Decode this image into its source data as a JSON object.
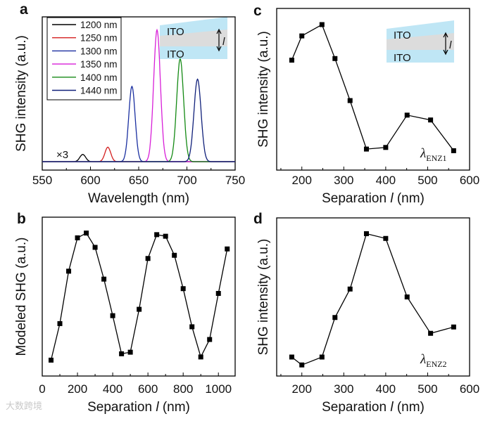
{
  "chart_data": [
    {
      "panel": "a",
      "type": "line",
      "xlabel": "Wavelength (nm)",
      "ylabel": "SHG intensity (a.u.)",
      "xlim": [
        550,
        750
      ],
      "ylim": [
        -0.058,
        1.0
      ],
      "xticks": [
        550,
        600,
        650,
        700,
        750
      ],
      "legend_position": "top-left",
      "annotation": "×3",
      "inset": {
        "top_label": "ITO",
        "bottom_label": "ITO",
        "gap_label": "l"
      },
      "series": [
        {
          "name": "1200 nm",
          "color": "#000000",
          "peak_nm": 592,
          "peak": 0.05,
          "width_nm": 3.0
        },
        {
          "name": "1250 nm",
          "color": "#d42020",
          "peak_nm": 618,
          "peak": 0.1,
          "width_nm": 3.0
        },
        {
          "name": "1300 nm",
          "color": "#1a2fa0",
          "peak_nm": 643,
          "peak": 0.52,
          "width_nm": 3.3
        },
        {
          "name": "1350 nm",
          "color": "#d81fd8",
          "peak_nm": 669,
          "peak": 0.91,
          "width_nm": 3.5
        },
        {
          "name": "1400 nm",
          "color": "#148a14",
          "peak_nm": 693,
          "peak": 0.71,
          "width_nm": 3.6
        },
        {
          "name": "1440 nm",
          "color": "#10207a",
          "peak_nm": 711,
          "peak": 0.57,
          "width_nm": 3.7
        }
      ]
    },
    {
      "panel": "b",
      "type": "line",
      "xlabel_main": "Separation ",
      "xlabel_var": "l",
      "xlabel_unit": " (nm)",
      "ylabel": "Modeled SHG (a.u.)",
      "xlim": [
        0,
        1095
      ],
      "ylim": [
        0,
        1
      ],
      "xticks": [
        0,
        200,
        400,
        600,
        800,
        1000
      ],
      "x": [
        50,
        100,
        150,
        200,
        250,
        300,
        350,
        400,
        450,
        500,
        550,
        600,
        650,
        700,
        750,
        800,
        850,
        900,
        950,
        1000,
        1050
      ],
      "values": [
        0.1,
        0.33,
        0.66,
        0.87,
        0.9,
        0.81,
        0.61,
        0.38,
        0.14,
        0.15,
        0.42,
        0.74,
        0.89,
        0.88,
        0.76,
        0.55,
        0.31,
        0.12,
        0.23,
        0.52,
        0.8
      ]
    },
    {
      "panel": "c",
      "type": "line",
      "xlabel_main": "Separation ",
      "xlabel_var": "l",
      "xlabel_unit": " (nm)",
      "ylabel": "SHG intensity (a.u.)",
      "xlim": [
        140,
        600
      ],
      "ylim": [
        0,
        1
      ],
      "xticks": [
        200,
        300,
        400,
        500,
        600
      ],
      "annotation_main": "λ",
      "annotation_sub": "ENZ1",
      "inset": {
        "top_label": "ITO",
        "bottom_label": "ITO",
        "gap_label": "l"
      },
      "x": [
        176,
        200,
        248,
        279,
        315,
        354,
        400,
        451,
        507,
        562
      ],
      "values": [
        0.68,
        0.83,
        0.9,
        0.69,
        0.43,
        0.13,
        0.14,
        0.34,
        0.31,
        0.12
      ]
    },
    {
      "panel": "d",
      "type": "line",
      "xlabel_main": "Separation ",
      "xlabel_var": "l",
      "xlabel_unit": " (nm)",
      "ylabel": "SHG intensity (a.u.)",
      "xlim": [
        140,
        600
      ],
      "ylim": [
        0,
        1
      ],
      "xticks": [
        200,
        300,
        400,
        500,
        600
      ],
      "annotation_main": "λ",
      "annotation_sub": "ENZ2",
      "x": [
        176,
        200,
        248,
        279,
        315,
        354,
        400,
        451,
        507,
        562
      ],
      "values": [
        0.12,
        0.07,
        0.12,
        0.37,
        0.55,
        0.9,
        0.87,
        0.5,
        0.27,
        0.31
      ]
    }
  ],
  "watermark": "大数跨境"
}
